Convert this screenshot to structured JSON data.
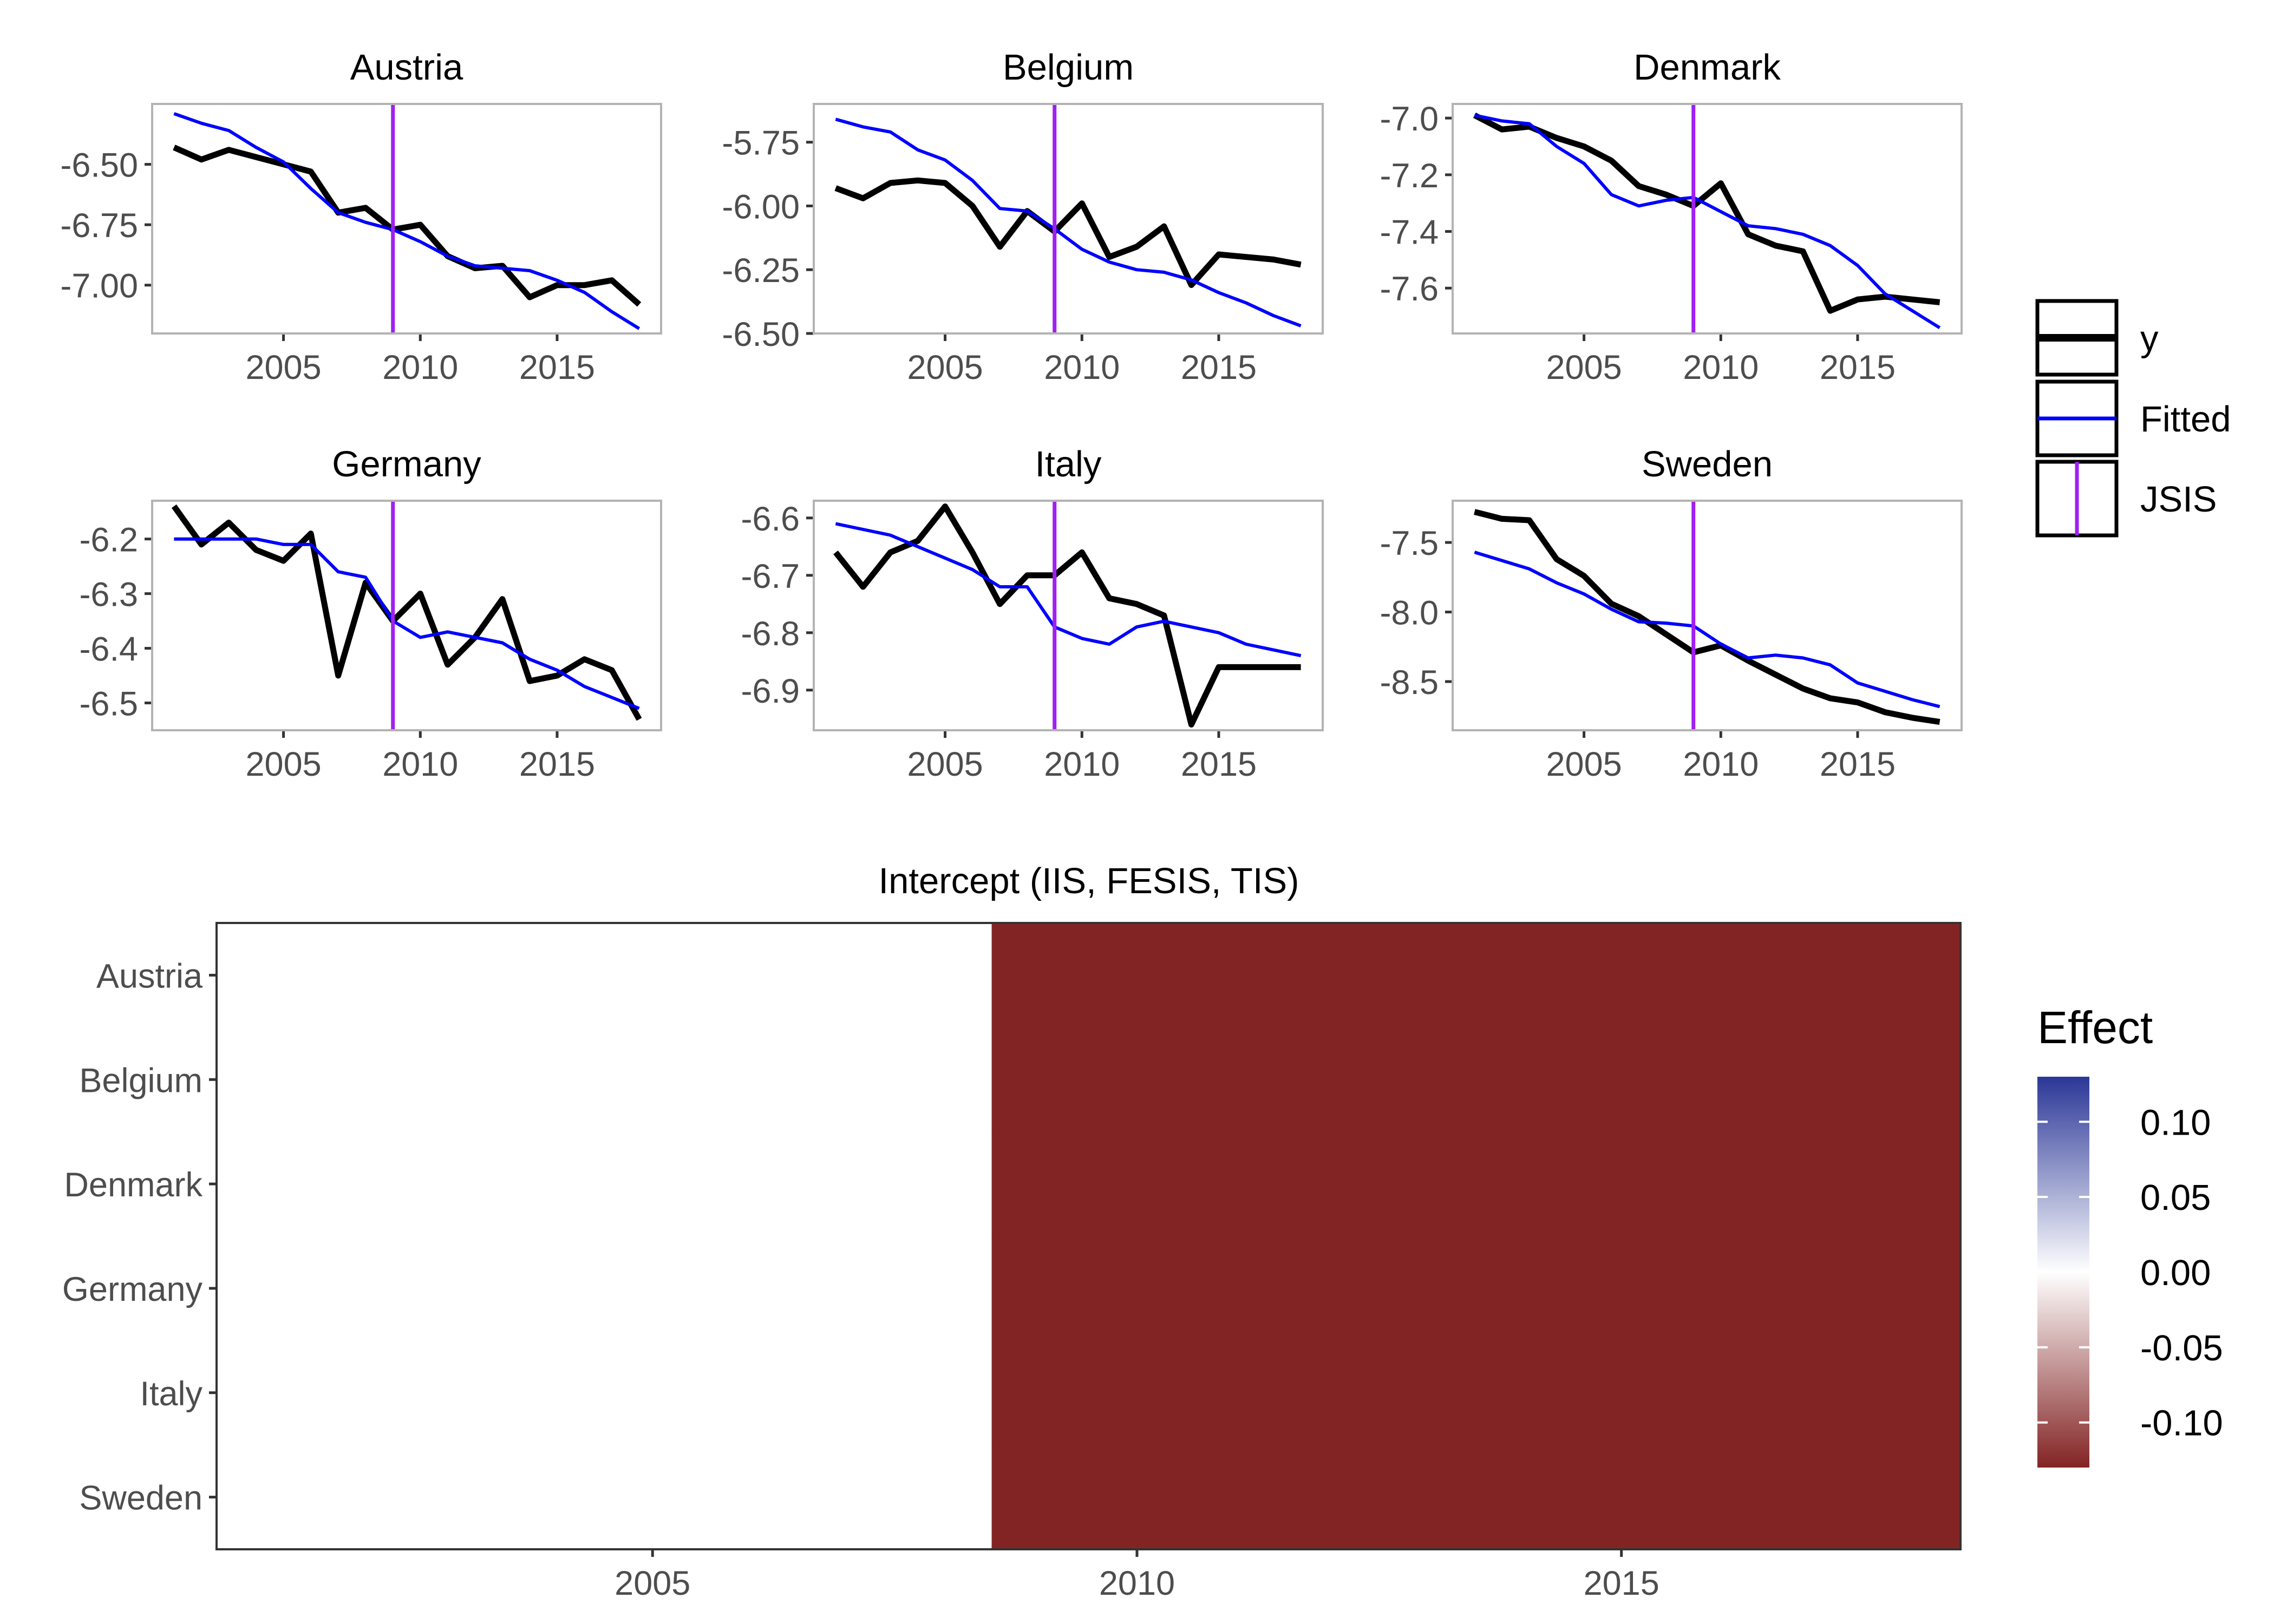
{
  "chart_data": [
    {
      "type": "line",
      "title": "Austria",
      "xlabel": "",
      "ylabel": "",
      "x": [
        2001,
        2002,
        2003,
        2004,
        2005,
        2006,
        2007,
        2008,
        2009,
        2010,
        2011,
        2012,
        2013,
        2014,
        2015,
        2016,
        2017,
        2018
      ],
      "xlim": [
        2000.2,
        2018.8
      ],
      "ylim": [
        -7.2,
        -6.25
      ],
      "xticks": [
        2005,
        2010,
        2015
      ],
      "xtick_labels": [
        "2005",
        "2010",
        "2015"
      ],
      "yticks": [
        -6.5,
        -6.75,
        -7.0
      ],
      "ytick_labels": [
        "-6.50",
        "-6.75",
        "-7.00"
      ],
      "series": [
        {
          "name": "y",
          "values": [
            -6.43,
            -6.48,
            -6.44,
            -6.47,
            -6.5,
            -6.53,
            -6.7,
            -6.68,
            -6.77,
            -6.75,
            -6.88,
            -6.93,
            -6.92,
            -7.05,
            -7.0,
            -7.0,
            -6.98,
            -7.08
          ]
        },
        {
          "name": "Fitted",
          "values": [
            -6.29,
            -6.33,
            -6.36,
            -6.43,
            -6.49,
            -6.6,
            -6.7,
            -6.74,
            -6.77,
            -6.82,
            -6.88,
            -6.92,
            -6.93,
            -6.94,
            -6.98,
            -7.03,
            -7.11,
            -7.18
          ]
        }
      ],
      "vline": 2009
    },
    {
      "type": "line",
      "title": "Belgium",
      "xlabel": "",
      "ylabel": "",
      "x": [
        2001,
        2002,
        2003,
        2004,
        2005,
        2006,
        2007,
        2008,
        2009,
        2010,
        2011,
        2012,
        2013,
        2014,
        2015,
        2016,
        2017,
        2018
      ],
      "xlim": [
        2000.2,
        2018.8
      ],
      "ylim": [
        -6.5,
        -5.6
      ],
      "xticks": [
        2005,
        2010,
        2015
      ],
      "xtick_labels": [
        "2005",
        "2010",
        "2015"
      ],
      "yticks": [
        -5.75,
        -6.0,
        -6.25,
        -6.5
      ],
      "ytick_labels": [
        "-5.75",
        "-6.00",
        "-6.25",
        "-6.50"
      ],
      "series": [
        {
          "name": "y",
          "values": [
            -5.93,
            -5.97,
            -5.91,
            -5.9,
            -5.91,
            -6.0,
            -6.16,
            -6.02,
            -6.1,
            -5.99,
            -6.2,
            -6.16,
            -6.08,
            -6.31,
            -6.19,
            -6.2,
            -6.21,
            -6.23
          ]
        },
        {
          "name": "Fitted",
          "values": [
            -5.66,
            -5.69,
            -5.71,
            -5.78,
            -5.82,
            -5.9,
            -6.01,
            -6.02,
            -6.09,
            -6.17,
            -6.22,
            -6.25,
            -6.26,
            -6.29,
            -6.34,
            -6.38,
            -6.43,
            -6.47
          ]
        }
      ],
      "vline": 2009
    },
    {
      "type": "line",
      "title": "Denmark",
      "xlabel": "",
      "ylabel": "",
      "x": [
        2001,
        2002,
        2003,
        2004,
        2005,
        2006,
        2007,
        2008,
        2009,
        2010,
        2011,
        2012,
        2013,
        2014,
        2015,
        2016,
        2017,
        2018
      ],
      "xlim": [
        2000.2,
        2018.8
      ],
      "ylim": [
        -7.76,
        -6.95
      ],
      "xticks": [
        2005,
        2010,
        2015
      ],
      "xtick_labels": [
        "2005",
        "2010",
        "2015"
      ],
      "yticks": [
        -7.0,
        -7.2,
        -7.4,
        -7.6
      ],
      "ytick_labels": [
        "-7.0",
        "-7.2",
        "-7.4",
        "-7.6"
      ],
      "series": [
        {
          "name": "y",
          "values": [
            -6.99,
            -7.04,
            -7.03,
            -7.07,
            -7.1,
            -7.15,
            -7.24,
            -7.27,
            -7.31,
            -7.23,
            -7.41,
            -7.45,
            -7.47,
            -7.68,
            -7.64,
            -7.63,
            -7.64,
            -7.65
          ]
        },
        {
          "name": "Fitted",
          "values": [
            -6.99,
            -7.01,
            -7.02,
            -7.1,
            -7.16,
            -7.27,
            -7.31,
            -7.29,
            -7.28,
            -7.33,
            -7.38,
            -7.39,
            -7.41,
            -7.45,
            -7.52,
            -7.62,
            -7.68,
            -7.74
          ]
        }
      ],
      "vline": 2009
    },
    {
      "type": "line",
      "title": "Germany",
      "xlabel": "",
      "ylabel": "",
      "x": [
        2001,
        2002,
        2003,
        2004,
        2005,
        2006,
        2007,
        2008,
        2009,
        2010,
        2011,
        2012,
        2013,
        2014,
        2015,
        2016,
        2017,
        2018
      ],
      "xlim": [
        2000.2,
        2018.8
      ],
      "ylim": [
        -6.55,
        -6.13
      ],
      "xticks": [
        2005,
        2010,
        2015
      ],
      "xtick_labels": [
        "2005",
        "2010",
        "2015"
      ],
      "yticks": [
        -6.2,
        -6.3,
        -6.4,
        -6.5
      ],
      "ytick_labels": [
        "-6.2",
        "-6.3",
        "-6.4",
        "-6.5"
      ],
      "series": [
        {
          "name": "y",
          "values": [
            -6.14,
            -6.21,
            -6.17,
            -6.22,
            -6.24,
            -6.19,
            -6.45,
            -6.28,
            -6.35,
            -6.3,
            -6.43,
            -6.38,
            -6.31,
            -6.46,
            -6.45,
            -6.42,
            -6.44,
            -6.53
          ]
        },
        {
          "name": "Fitted",
          "values": [
            -6.2,
            -6.2,
            -6.2,
            -6.2,
            -6.21,
            -6.21,
            -6.26,
            -6.27,
            -6.35,
            -6.38,
            -6.37,
            -6.38,
            -6.39,
            -6.42,
            -6.44,
            -6.47,
            -6.49,
            -6.51
          ]
        }
      ],
      "vline": 2009
    },
    {
      "type": "line",
      "title": "Italy",
      "xlabel": "",
      "ylabel": "",
      "x": [
        2001,
        2002,
        2003,
        2004,
        2005,
        2006,
        2007,
        2008,
        2009,
        2010,
        2011,
        2012,
        2013,
        2014,
        2015,
        2016,
        2017,
        2018
      ],
      "xlim": [
        2000.2,
        2018.8
      ],
      "ylim": [
        -6.97,
        -6.57
      ],
      "xticks": [
        2005,
        2010,
        2015
      ],
      "xtick_labels": [
        "2005",
        "2010",
        "2015"
      ],
      "yticks": [
        -6.6,
        -6.7,
        -6.8,
        -6.9
      ],
      "ytick_labels": [
        "-6.6",
        "-6.7",
        "-6.8",
        "-6.9"
      ],
      "series": [
        {
          "name": "y",
          "values": [
            -6.66,
            -6.72,
            -6.66,
            -6.64,
            -6.58,
            -6.66,
            -6.75,
            -6.7,
            -6.7,
            -6.66,
            -6.74,
            -6.75,
            -6.77,
            -6.96,
            -6.86,
            -6.86,
            -6.86,
            -6.86
          ]
        },
        {
          "name": "Fitted",
          "values": [
            -6.61,
            -6.62,
            -6.63,
            -6.65,
            -6.67,
            -6.69,
            -6.72,
            -6.72,
            -6.79,
            -6.81,
            -6.82,
            -6.79,
            -6.78,
            -6.79,
            -6.8,
            -6.82,
            -6.83,
            -6.84
          ]
        }
      ],
      "vline": 2009
    },
    {
      "type": "line",
      "title": "Sweden",
      "xlabel": "",
      "ylabel": "",
      "x": [
        2001,
        2002,
        2003,
        2004,
        2005,
        2006,
        2007,
        2008,
        2009,
        2010,
        2011,
        2012,
        2013,
        2014,
        2015,
        2016,
        2017,
        2018
      ],
      "xlim": [
        2000.2,
        2018.8
      ],
      "ylim": [
        -8.85,
        -7.2
      ],
      "xticks": [
        2005,
        2010,
        2015
      ],
      "xtick_labels": [
        "2005",
        "2010",
        "2015"
      ],
      "yticks": [
        -7.5,
        -8.0,
        -8.5
      ],
      "ytick_labels": [
        "-7.5",
        "-8.0",
        "-8.5"
      ],
      "series": [
        {
          "name": "y",
          "values": [
            -7.28,
            -7.33,
            -7.34,
            -7.62,
            -7.74,
            -7.94,
            -8.03,
            -8.16,
            -8.29,
            -8.24,
            -8.35,
            -8.45,
            -8.55,
            -8.62,
            -8.65,
            -8.72,
            -8.76,
            -8.79
          ]
        },
        {
          "name": "Fitted",
          "values": [
            -7.57,
            -7.63,
            -7.69,
            -7.79,
            -7.87,
            -7.98,
            -8.07,
            -8.08,
            -8.1,
            -8.23,
            -8.33,
            -8.31,
            -8.33,
            -8.38,
            -8.51,
            -8.57,
            -8.63,
            -8.68
          ]
        }
      ],
      "vline": 2009
    },
    {
      "type": "heatmap",
      "title": "Intercept (IIS, FESIS, TIS)",
      "xlabel": "",
      "ylabel": "",
      "x_range": [
        2001,
        2018
      ],
      "xlim": [
        2000.5,
        2018.5
      ],
      "xticks": [
        2005,
        2010,
        2015
      ],
      "xtick_labels": [
        "2005",
        "2010",
        "2015"
      ],
      "categories": [
        "Austria",
        "Belgium",
        "Denmark",
        "Germany",
        "Italy",
        "Sweden"
      ],
      "segments": [
        {
          "from": 2000.5,
          "to": 2008.5,
          "value": 0.0
        },
        {
          "from": 2008.5,
          "to": 2018.5,
          "value": -0.13
        }
      ],
      "legend_title": "Effect",
      "colorbar": {
        "limits": [
          -0.13,
          0.13
        ],
        "ticks": [
          0.1,
          0.05,
          0.0,
          -0.05,
          -0.1
        ],
        "tick_labels": [
          "0.10",
          "0.05",
          "0.00",
          "-0.05",
          "-0.10"
        ],
        "colors": {
          "high": "#2b3797",
          "mid": "#ffffff",
          "low": "#832424"
        }
      }
    }
  ],
  "legend": {
    "items": [
      {
        "label": "y",
        "color": "#000000"
      },
      {
        "label": "Fitted",
        "color": "#0000ff"
      },
      {
        "label": "JSIS",
        "color": "#a020f0"
      }
    ]
  }
}
